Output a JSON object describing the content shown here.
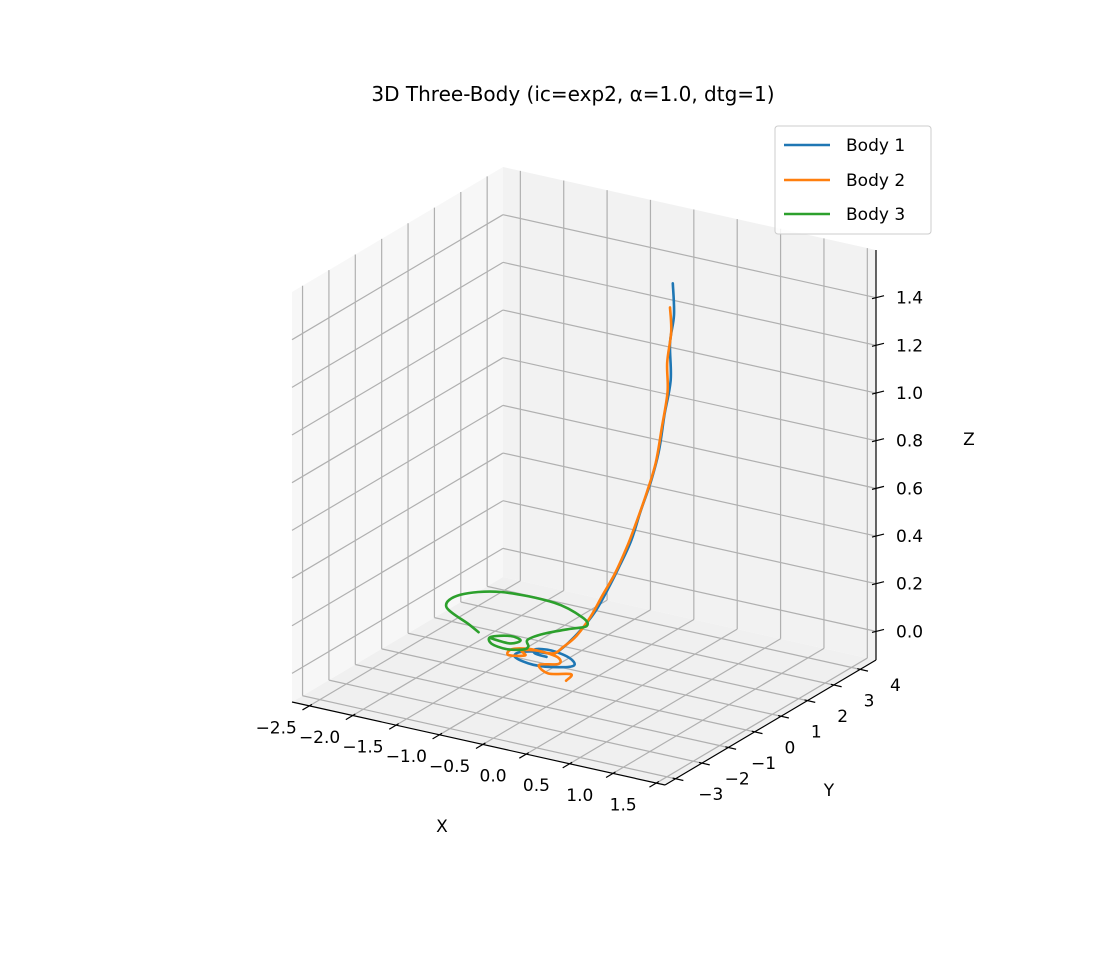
{
  "chart_data": {
    "type": "line",
    "projection": "3d",
    "title": "3D Three-Body (ic=exp2, α=1.0, dtg=1)",
    "xlabel": "X",
    "ylabel": "Y",
    "zlabel": "Z",
    "xlim": [
      -2.7,
      1.6
    ],
    "ylim": [
      -3.4,
      4.6
    ],
    "zlim": [
      -0.12,
      1.6
    ],
    "x_ticks": [
      "−2.5",
      "−2.0",
      "−1.5",
      "−1.0",
      "−0.5",
      "0.0",
      "0.5",
      "1.0",
      "1.5"
    ],
    "x_tick_values": [
      -2.5,
      -2.0,
      -1.5,
      -1.0,
      -0.5,
      0.0,
      0.5,
      1.0,
      1.5
    ],
    "y_ticks": [
      "−3",
      "−2",
      "−1",
      "0",
      "1",
      "2",
      "3",
      "4"
    ],
    "y_tick_values": [
      -3,
      -2,
      -1,
      0,
      1,
      2,
      3,
      4
    ],
    "z_ticks": [
      "0.0",
      "0.2",
      "0.4",
      "0.6",
      "0.8",
      "1.0",
      "1.2",
      "1.4"
    ],
    "z_tick_values": [
      0.0,
      0.2,
      0.4,
      0.6,
      0.8,
      1.0,
      1.2,
      1.4
    ],
    "grid": true,
    "legend_position": "top-right",
    "series": [
      {
        "name": "Body 1",
        "color": "#1f77b4",
        "points": [
          [
            0.2,
            1.5,
            1.55
          ],
          [
            0.22,
            1.48,
            1.42
          ],
          [
            0.18,
            1.46,
            1.3
          ],
          [
            0.2,
            1.42,
            1.15
          ],
          [
            0.14,
            1.38,
            1.0
          ],
          [
            0.1,
            1.3,
            0.85
          ],
          [
            0.03,
            1.22,
            0.72
          ],
          [
            -0.05,
            1.1,
            0.6
          ],
          [
            -0.12,
            0.98,
            0.48
          ],
          [
            -0.22,
            0.85,
            0.37
          ],
          [
            -0.32,
            0.72,
            0.27
          ],
          [
            -0.42,
            0.58,
            0.18
          ],
          [
            -0.55,
            0.45,
            0.1
          ],
          [
            -0.65,
            0.35,
            0.05
          ],
          [
            -0.72,
            0.3,
            0.02
          ],
          [
            -0.78,
            0.25,
            0.0
          ],
          [
            -0.85,
            0.18,
            0.0
          ],
          [
            -1.0,
            0.1,
            0.0
          ],
          [
            -1.1,
            -0.1,
            0.0
          ],
          [
            -1.05,
            -0.35,
            0.0
          ],
          [
            -0.8,
            -0.5,
            0.0
          ],
          [
            -0.55,
            -0.35,
            0.0
          ],
          [
            -0.45,
            -0.1,
            0.0
          ],
          [
            -0.6,
            0.2,
            0.0
          ],
          [
            -0.85,
            0.35,
            0.0
          ],
          [
            -1.0,
            0.25,
            0.0
          ],
          [
            -0.95,
            0.05,
            0.0
          ],
          [
            -0.8,
            0.0,
            0.0
          ]
        ]
      },
      {
        "name": "Body 2",
        "color": "#ff7f0e",
        "points": [
          [
            0.18,
            1.46,
            1.45
          ],
          [
            0.2,
            1.44,
            1.35
          ],
          [
            0.16,
            1.42,
            1.22
          ],
          [
            0.17,
            1.4,
            1.1
          ],
          [
            0.12,
            1.35,
            0.95
          ],
          [
            0.07,
            1.28,
            0.8
          ],
          [
            0.0,
            1.18,
            0.68
          ],
          [
            -0.08,
            1.06,
            0.56
          ],
          [
            -0.16,
            0.94,
            0.45
          ],
          [
            -0.26,
            0.82,
            0.34
          ],
          [
            -0.36,
            0.68,
            0.25
          ],
          [
            -0.46,
            0.55,
            0.16
          ],
          [
            -0.58,
            0.42,
            0.08
          ],
          [
            -0.7,
            0.32,
            0.03
          ],
          [
            -0.8,
            0.22,
            0.0
          ],
          [
            -1.05,
            0.2,
            0.0
          ],
          [
            -1.2,
            0.0,
            0.0
          ],
          [
            -1.15,
            -0.3,
            0.0
          ],
          [
            -1.0,
            -0.15,
            0.0
          ],
          [
            -1.1,
            0.05,
            0.0
          ],
          [
            -0.95,
            0.2,
            0.0
          ],
          [
            -0.7,
            0.1,
            0.0
          ],
          [
            -0.6,
            -0.2,
            0.0
          ],
          [
            -0.75,
            -0.45,
            0.0
          ],
          [
            -0.55,
            -0.75,
            0.0
          ],
          [
            -0.35,
            -0.55,
            0.0
          ],
          [
            -0.3,
            -0.9,
            0.0
          ]
        ]
      },
      {
        "name": "Body 3",
        "color": "#2ca02c",
        "points": [
          [
            -1.72,
            0.45,
            0.0
          ],
          [
            -1.9,
            0.7,
            0.0
          ],
          [
            -2.35,
            1.3,
            0.0
          ],
          [
            -2.4,
            2.0,
            0.0
          ],
          [
            -2.1,
            2.55,
            0.0
          ],
          [
            -1.5,
            2.6,
            0.0
          ],
          [
            -1.05,
            2.2,
            0.0
          ],
          [
            -0.9,
            1.85,
            0.0
          ],
          [
            -1.0,
            1.55,
            0.0
          ],
          [
            -1.15,
            1.05,
            0.0
          ],
          [
            -1.2,
            0.6,
            0.0
          ],
          [
            -1.1,
            0.3,
            0.0
          ],
          [
            -1.1,
            0.1,
            0.0
          ],
          [
            -1.25,
            -0.05,
            0.0
          ],
          [
            -1.45,
            0.05,
            0.0
          ],
          [
            -1.55,
            0.35,
            0.0
          ],
          [
            -1.4,
            0.6,
            0.0
          ],
          [
            -1.25,
            0.5,
            0.0
          ],
          [
            -1.3,
            0.25,
            0.0
          ],
          [
            -1.55,
            0.3,
            0.0
          ]
        ]
      }
    ]
  }
}
